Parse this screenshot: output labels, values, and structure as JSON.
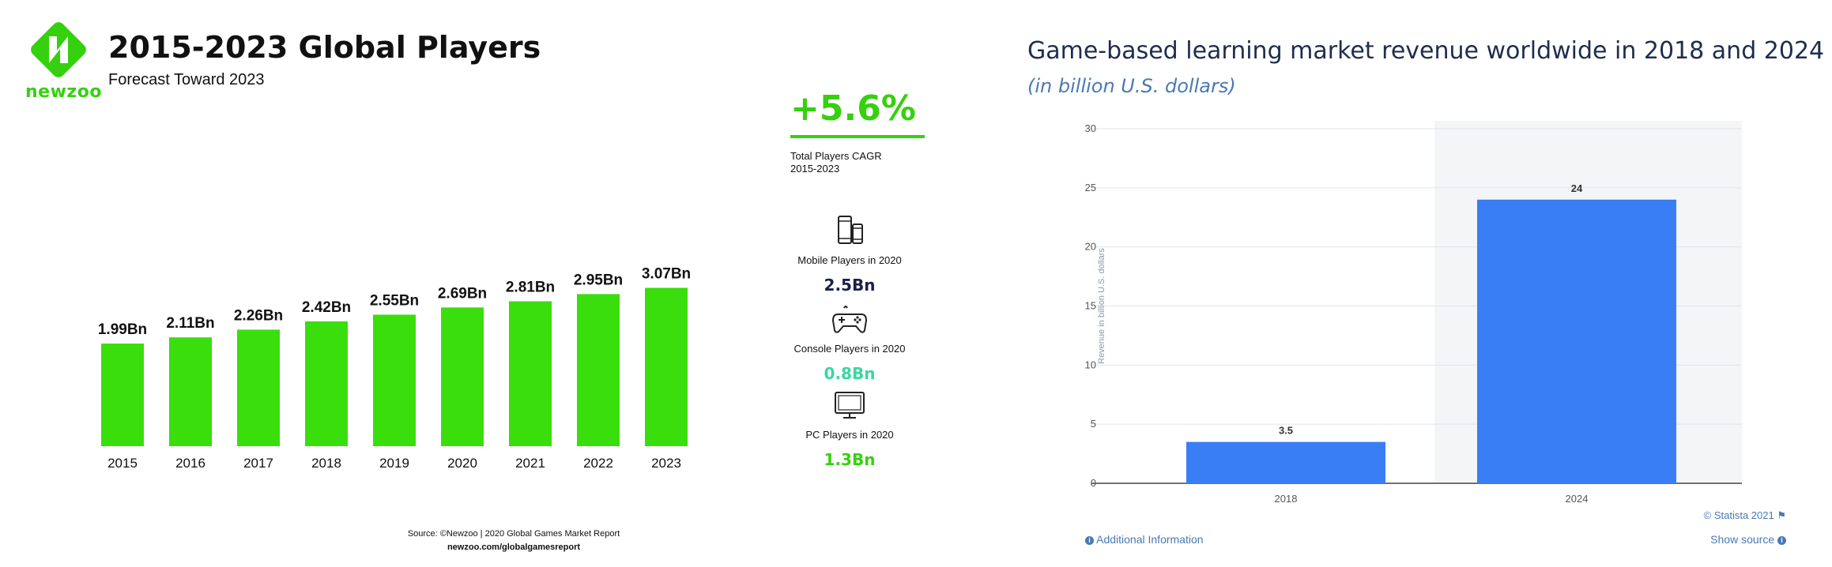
{
  "left": {
    "brand": "newzoo",
    "title": "2015-2023 Global Players",
    "subtitle": "Forecast Toward 2023",
    "cagr": {
      "value": "+5.6%",
      "label_line1": "Total Players CAGR",
      "label_line2": "2015-2023"
    },
    "stats": [
      {
        "label": "Mobile Players in 2020",
        "value": "2.5Bn",
        "icon": "mobile-phones-icon",
        "color": "#1b1f4b"
      },
      {
        "label": "Console Players in 2020",
        "value": "0.8Bn",
        "icon": "gamepad-icon",
        "color": "#3ad7a0"
      },
      {
        "label": "PC Players in 2020",
        "value": "1.3Bn",
        "icon": "monitor-icon",
        "color": "#35d10e"
      }
    ],
    "source_line1": "Source: ©Newzoo | 2020 Global Games Market Report",
    "source_line2": "newzoo.com/globalgamesreport"
  },
  "right": {
    "title": "Game-based learning market revenue worldwide in 2018 and 2024",
    "subtitle": "(in billion U.S. dollars)",
    "copyright": "© Statista 2021",
    "additional_info": "Additional Information",
    "show_source": "Show source"
  },
  "chart_data": [
    {
      "type": "bar",
      "title": "2015-2023 Global Players",
      "subtitle": "Forecast Toward 2023",
      "categories": [
        "2015",
        "2016",
        "2017",
        "2018",
        "2019",
        "2020",
        "2021",
        "2022",
        "2023"
      ],
      "values": [
        1.99,
        2.11,
        2.26,
        2.42,
        2.55,
        2.69,
        2.81,
        2.95,
        3.07
      ],
      "data_labels": [
        "1.99Bn",
        "2.11Bn",
        "2.26Bn",
        "2.42Bn",
        "2.55Bn",
        "2.69Bn",
        "2.81Bn",
        "2.95Bn",
        "3.07Bn"
      ],
      "color": "#3ade0c",
      "grid": false
    },
    {
      "type": "bar",
      "title": "Game-based learning market revenue worldwide in 2018 and 2024",
      "subtitle": "(in billion U.S. dollars)",
      "categories": [
        "2018",
        "2024"
      ],
      "values": [
        3.5,
        24
      ],
      "data_labels": [
        "3.5",
        "24"
      ],
      "ylabel": "Revenue in billion U.S. dollars",
      "ylim": [
        0,
        30
      ],
      "yticks": [
        0,
        5,
        10,
        15,
        20,
        25,
        30
      ],
      "color": "#3a7ef5",
      "grid": true
    }
  ]
}
